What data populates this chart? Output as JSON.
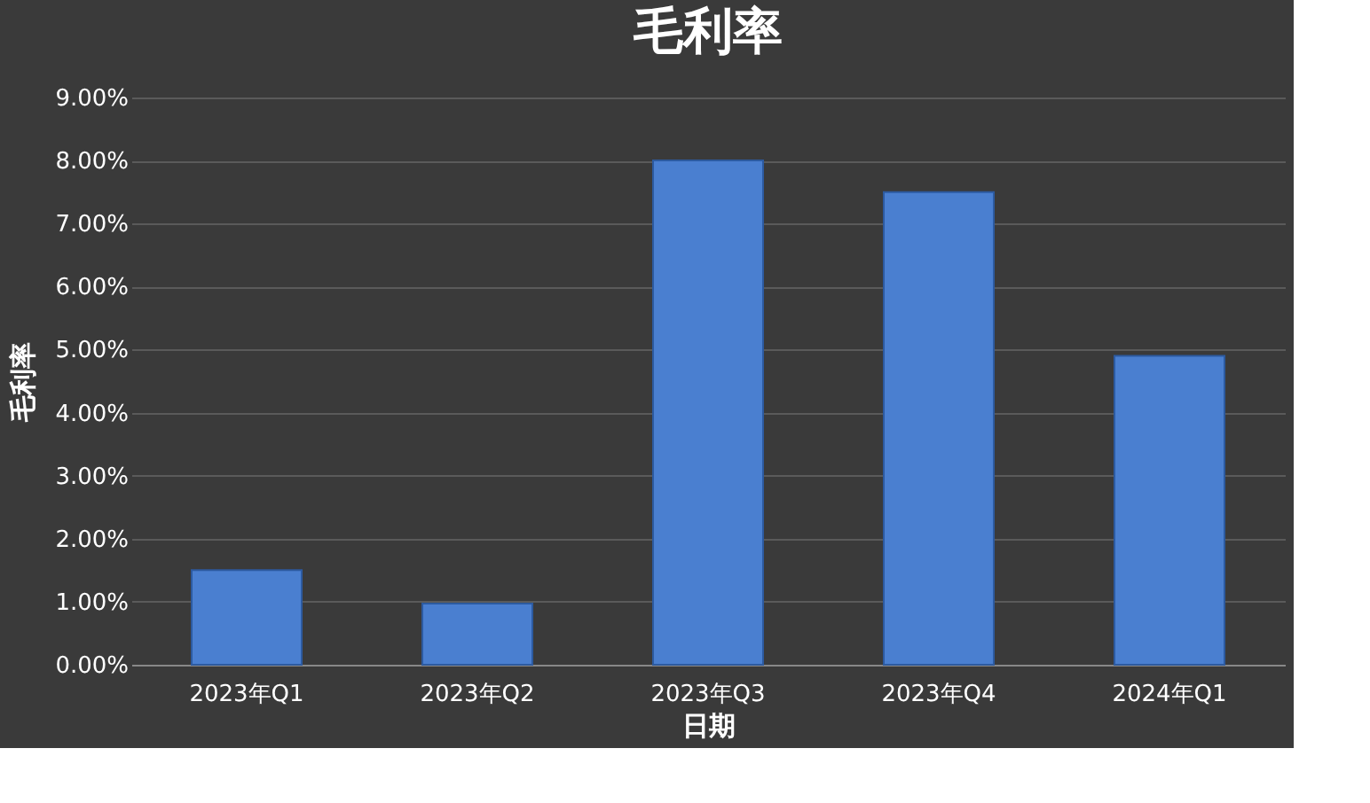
{
  "chart_data": {
    "type": "bar",
    "title": "毛利率",
    "xlabel": "日期",
    "ylabel": "毛利率",
    "categories": [
      "2023年Q1",
      "2023年Q2",
      "2023年Q3",
      "2023年Q4",
      "2024年Q1"
    ],
    "values": [
      1.5,
      0.97,
      8.0,
      7.5,
      4.9
    ],
    "color": "#4a7fd0",
    "ylim": [
      0,
      9
    ],
    "yticks": [
      {
        "value": 0,
        "label": "0.00%"
      },
      {
        "value": 1,
        "label": "1.00%"
      },
      {
        "value": 2,
        "label": "2.00%"
      },
      {
        "value": 3,
        "label": "3.00%"
      },
      {
        "value": 4,
        "label": "4.00%"
      },
      {
        "value": 5,
        "label": "5.00%"
      },
      {
        "value": 6,
        "label": "6.00%"
      },
      {
        "value": 7,
        "label": "7.00%"
      },
      {
        "value": 8,
        "label": "8.00%"
      },
      {
        "value": 9,
        "label": "9.00%"
      }
    ],
    "grid": "y"
  }
}
